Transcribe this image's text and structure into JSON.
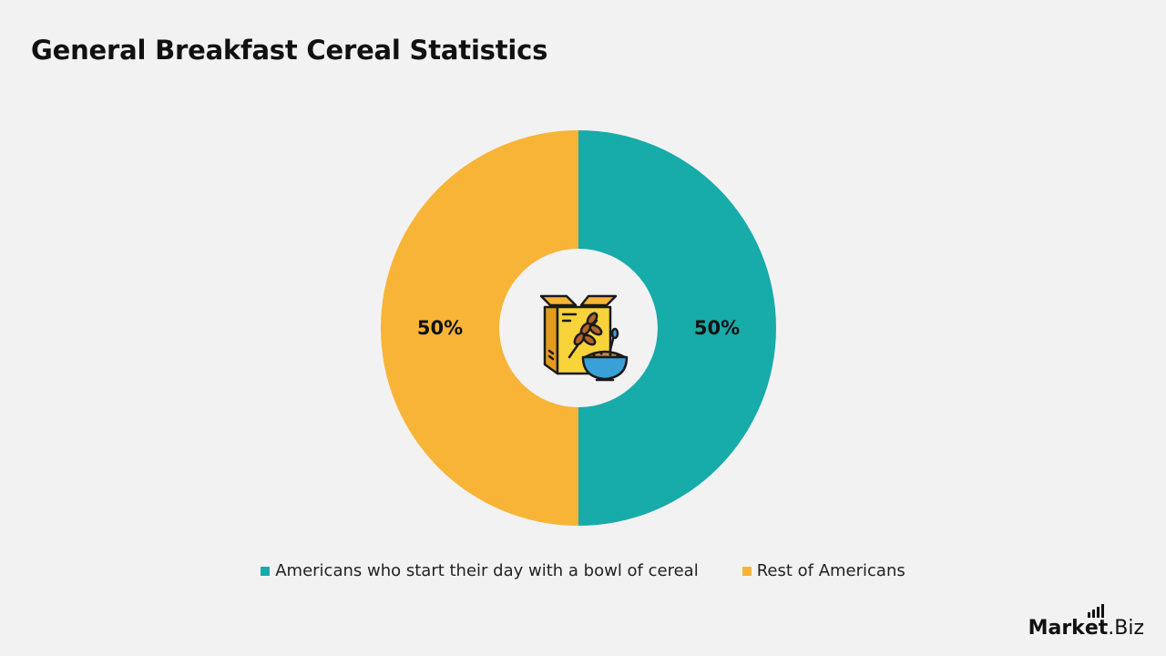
{
  "title": "General Breakfast Cereal Statistics",
  "brand": {
    "part1": "Mark",
    "part2": "et",
    "part3": ".Biz"
  },
  "center_icon": "cereal-box-and-bowl-icon",
  "chart_data": {
    "type": "pie",
    "donut": true,
    "title": "General Breakfast Cereal Statistics",
    "slices": [
      {
        "name": "Americans who start their day with a bowl of cereal",
        "value": 50,
        "label": "50%",
        "color": "#17abaa"
      },
      {
        "name": "Rest of Americans",
        "value": 50,
        "label": "50%",
        "color": "#f8b437"
      }
    ],
    "legend_position": "bottom",
    "legend": [
      {
        "name": "Americans who start their day with a bowl of cereal",
        "color": "#17abaa"
      },
      {
        "name": "Rest of Americans",
        "color": "#f8b437"
      }
    ]
  }
}
